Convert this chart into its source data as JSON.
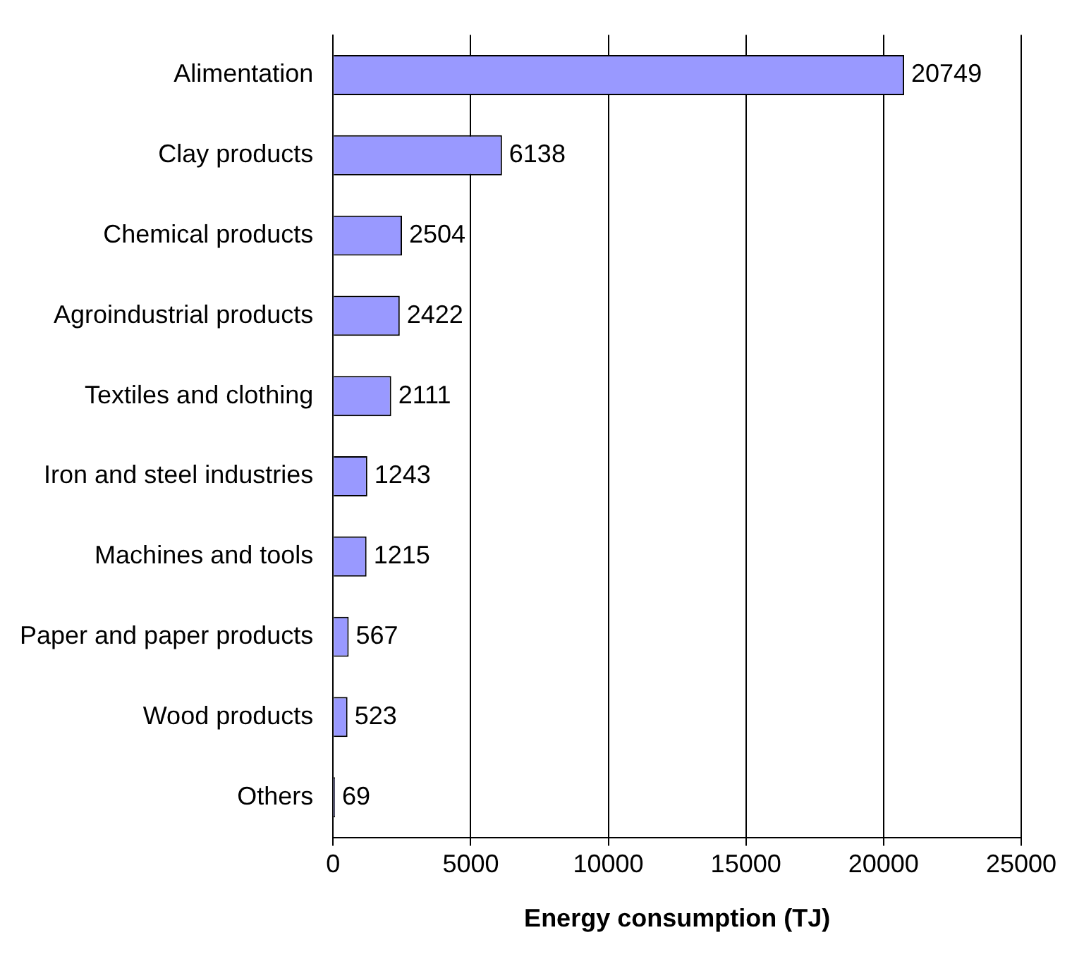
{
  "chart_data": {
    "type": "bar",
    "orientation": "horizontal",
    "xlabel": "Energy consumption (TJ)",
    "categories": [
      "Alimentation",
      "Clay products",
      "Chemical products",
      "Agroindustrial products",
      "Textiles and clothing",
      "Iron and steel industries",
      "Machines and tools",
      "Paper and paper products",
      "Wood products",
      "Others"
    ],
    "values": [
      20749,
      6138,
      2504,
      2422,
      2111,
      1243,
      1215,
      567,
      523,
      69
    ],
    "color": "#9999ff",
    "xlim": [
      0,
      25000
    ],
    "xticks": [
      0,
      5000,
      10000,
      15000,
      20000,
      25000
    ],
    "grid": "x",
    "legend": false,
    "data_labels": true
  }
}
